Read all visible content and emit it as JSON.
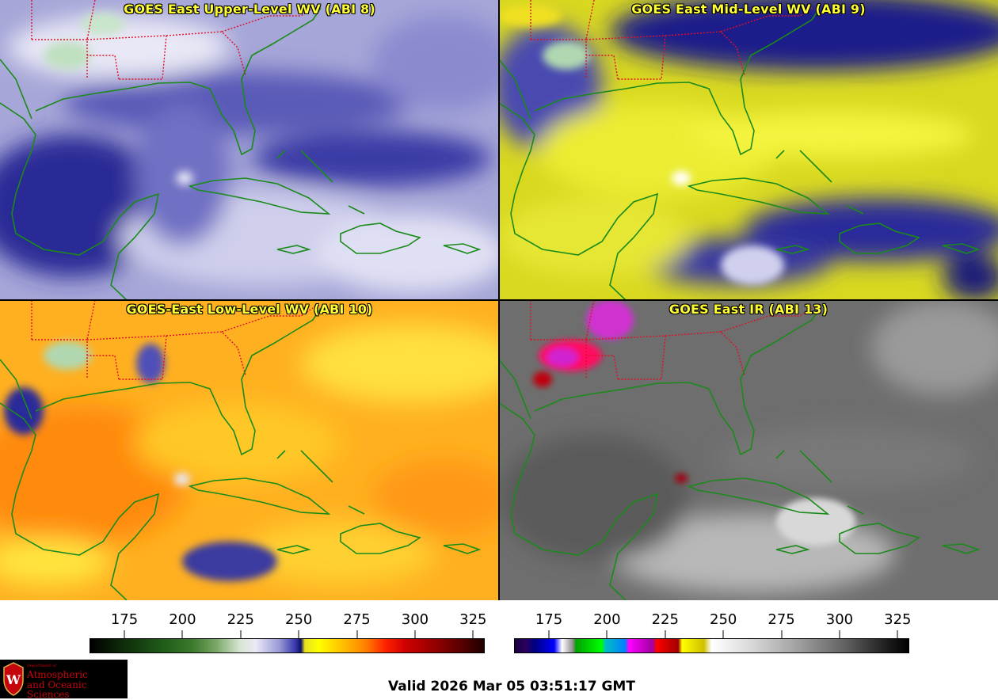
{
  "panels": [
    {
      "id": "upper",
      "title": "GOES East Upper-Level WV (ABI 8)",
      "colormap": "water-vapor"
    },
    {
      "id": "mid",
      "title": "GOES East Mid-Level WV (ABI 9)",
      "colormap": "water-vapor"
    },
    {
      "id": "low",
      "title": "GOES-East Low-Level WV (ABI 10)",
      "colormap": "water-vapor"
    },
    {
      "id": "ir",
      "title": "GOES East IR (ABI 13)",
      "colormap": "infrared"
    }
  ],
  "colorbars": {
    "left": {
      "ticks": [
        "175",
        "200",
        "225",
        "250",
        "275",
        "300",
        "325"
      ]
    },
    "right": {
      "ticks": [
        "175",
        "200",
        "225",
        "250",
        "275",
        "300",
        "325"
      ]
    }
  },
  "footer": {
    "valid_time": "Valid 2026 Mar 05 03:51:17 GMT",
    "logo": {
      "department": "Department of",
      "line1": "Atmospheric",
      "line2": "and Oceanic Sciences",
      "icon": "uw-crest-icon"
    }
  },
  "colors": {
    "title_text": "#ffff33",
    "coastline": "#1a8a1a",
    "state_borders": "#e0102a",
    "logo_red": "#c5050c"
  }
}
